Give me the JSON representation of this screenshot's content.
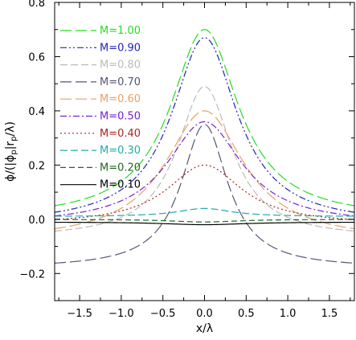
{
  "chart_data": {
    "type": "line",
    "xlabel": "x/λ",
    "ylabel": "ϕ/(|ϕ",
    "ylabel_sub1": "p",
    "ylabel_mid": "|r",
    "ylabel_sub2": "p",
    "ylabel_end": "/λ)",
    "xlim": [
      -1.8,
      1.8
    ],
    "ylim": [
      -0.3,
      0.8
    ],
    "xticks": [
      -1.5,
      -1.0,
      -0.5,
      0.0,
      0.5,
      1.0,
      1.5
    ],
    "xtick_labels": [
      "−1.5",
      "−1.0",
      "−0.5",
      "0.0",
      "0.5",
      "1.0",
      "1.5"
    ],
    "yticks": [
      -0.2,
      0.0,
      0.2,
      0.4,
      0.6,
      0.8
    ],
    "ytick_labels": [
      "−0.2",
      "0.0",
      "0.2",
      "0.4",
      "0.6",
      "0.8"
    ],
    "grid": false,
    "legend_position": "top-left",
    "series": [
      {
        "name": "M=1.00",
        "peak": 0.7,
        "tail": 0.0,
        "width": 0.5,
        "color": "#22dd22",
        "dash": "14,5"
      },
      {
        "name": "M=0.90",
        "peak": 0.67,
        "tail": -0.02,
        "width": 0.48,
        "color": "#2222bb",
        "dash": "8,3,2,3,2,3"
      },
      {
        "name": "M=0.80",
        "peak": 0.49,
        "tail": -0.07,
        "width": 0.4,
        "color": "#bbbbbb",
        "dash": "9,4"
      },
      {
        "name": "M=0.70",
        "peak": 0.35,
        "tail": -0.18,
        "width": 0.34,
        "color": "#555577",
        "dash": "14,5"
      },
      {
        "name": "M=0.60",
        "peak": 0.4,
        "tail": -0.08,
        "width": 0.58,
        "color": "#e8a060",
        "dash": "14,5"
      },
      {
        "name": "M=0.50",
        "peak": 0.36,
        "tail": -0.02,
        "width": 0.55,
        "color": "#7722cc",
        "dash": "8,3,2,3"
      },
      {
        "name": "M=0.40",
        "peak": 0.2,
        "tail": -0.02,
        "width": 0.55,
        "color": "#aa2222",
        "dash": "2,3"
      },
      {
        "name": "M=0.30",
        "peak": 0.04,
        "tail": 0.01,
        "width": 0.4,
        "color": "#22aaaa",
        "dash": "9,4"
      },
      {
        "name": "M=0.20",
        "peak": -0.01,
        "tail": 0.0,
        "width": 0.5,
        "color": "#226622",
        "dash": "7,4"
      },
      {
        "name": "M=0.10",
        "peak": -0.02,
        "tail": -0.01,
        "width": 0.6,
        "color": "#000000",
        "dash": ""
      }
    ]
  }
}
